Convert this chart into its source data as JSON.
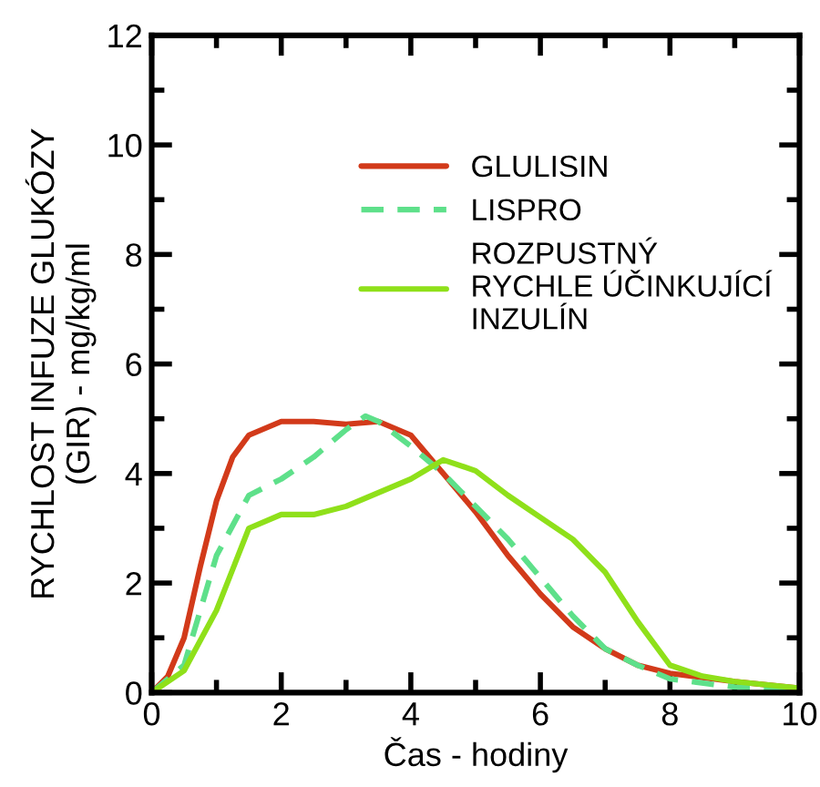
{
  "chart_data": {
    "type": "line",
    "xlabel": "Čas - hodiny",
    "ylabel": "RYCHLOST INFUZE GLUKÓZY\n(GIR) - mg/kg/ml",
    "xlim": [
      0,
      10
    ],
    "ylim": [
      0,
      12
    ],
    "xticks": [
      0,
      2,
      4,
      6,
      8,
      10
    ],
    "yticks": [
      0,
      2,
      4,
      6,
      8,
      10,
      12
    ],
    "grid": false,
    "legend": "top right",
    "marker": "none",
    "series": [
      {
        "name": "GLULISIN",
        "color": "#d23a1a",
        "line_style": "solid",
        "x": [
          0,
          0.25,
          0.5,
          0.75,
          1,
          1.25,
          1.5,
          2,
          2.5,
          3,
          3.5,
          4,
          4.5,
          5,
          5.5,
          6,
          6.5,
          7,
          7.5,
          8,
          9,
          10
        ],
        "values": [
          0,
          0.3,
          1.0,
          2.3,
          3.5,
          4.3,
          4.7,
          4.95,
          4.95,
          4.9,
          4.95,
          4.7,
          4.0,
          3.3,
          2.5,
          1.8,
          1.2,
          0.8,
          0.5,
          0.35,
          0.2,
          0.08
        ]
      },
      {
        "name": "LISPRO",
        "color": "#5ee08a",
        "line_style": "dashed",
        "x": [
          0,
          0.5,
          1,
          1.5,
          2,
          2.5,
          3,
          3.3,
          3.5,
          4,
          4.5,
          5,
          5.5,
          6,
          6.5,
          7,
          7.5,
          8,
          9,
          10
        ],
        "values": [
          0,
          0.5,
          2.5,
          3.6,
          3.9,
          4.3,
          4.8,
          5.05,
          4.95,
          4.5,
          4.0,
          3.4,
          2.8,
          2.1,
          1.4,
          0.8,
          0.5,
          0.25,
          0.1,
          0.05
        ]
      },
      {
        "name": "ROZPUSTNÝ\nRYCHLE ÚČINKUJÍCÍ\nINZULÍN",
        "color": "#8fe01a",
        "line_style": "solid",
        "x": [
          0,
          0.5,
          1,
          1.5,
          2,
          2.5,
          3,
          3.5,
          4,
          4.5,
          5,
          5.5,
          6,
          6.5,
          7,
          7.5,
          8,
          8.5,
          9,
          10
        ],
        "values": [
          0,
          0.4,
          1.5,
          3.0,
          3.25,
          3.25,
          3.4,
          3.65,
          3.9,
          4.25,
          4.05,
          3.6,
          3.2,
          2.8,
          2.2,
          1.3,
          0.5,
          0.3,
          0.2,
          0.08
        ]
      }
    ]
  }
}
